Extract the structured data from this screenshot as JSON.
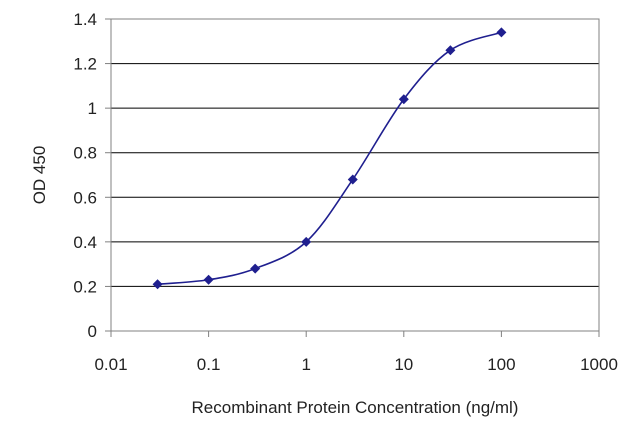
{
  "chart_data": {
    "type": "line",
    "xlabel": "Recombinant Protein Concentration (ng/ml)",
    "ylabel": "OD 450",
    "x_scale": "log",
    "xlim": [
      0.01,
      1000
    ],
    "ylim": [
      0,
      1.4
    ],
    "x_ticks": [
      "0.01",
      "0.1",
      "1",
      "10",
      "100",
      "1000"
    ],
    "y_ticks": [
      "0",
      "0.2",
      "0.4",
      "0.6",
      "0.8",
      "1",
      "1.2",
      "1.4"
    ],
    "grid": "horizontal",
    "series": [
      {
        "color": "#1f1f8f",
        "marker": "diamond",
        "x": [
          0.03,
          0.1,
          0.3,
          1,
          3,
          10,
          30,
          100
        ],
        "y": [
          0.21,
          0.23,
          0.28,
          0.4,
          0.68,
          1.04,
          1.26,
          1.34
        ]
      }
    ]
  }
}
